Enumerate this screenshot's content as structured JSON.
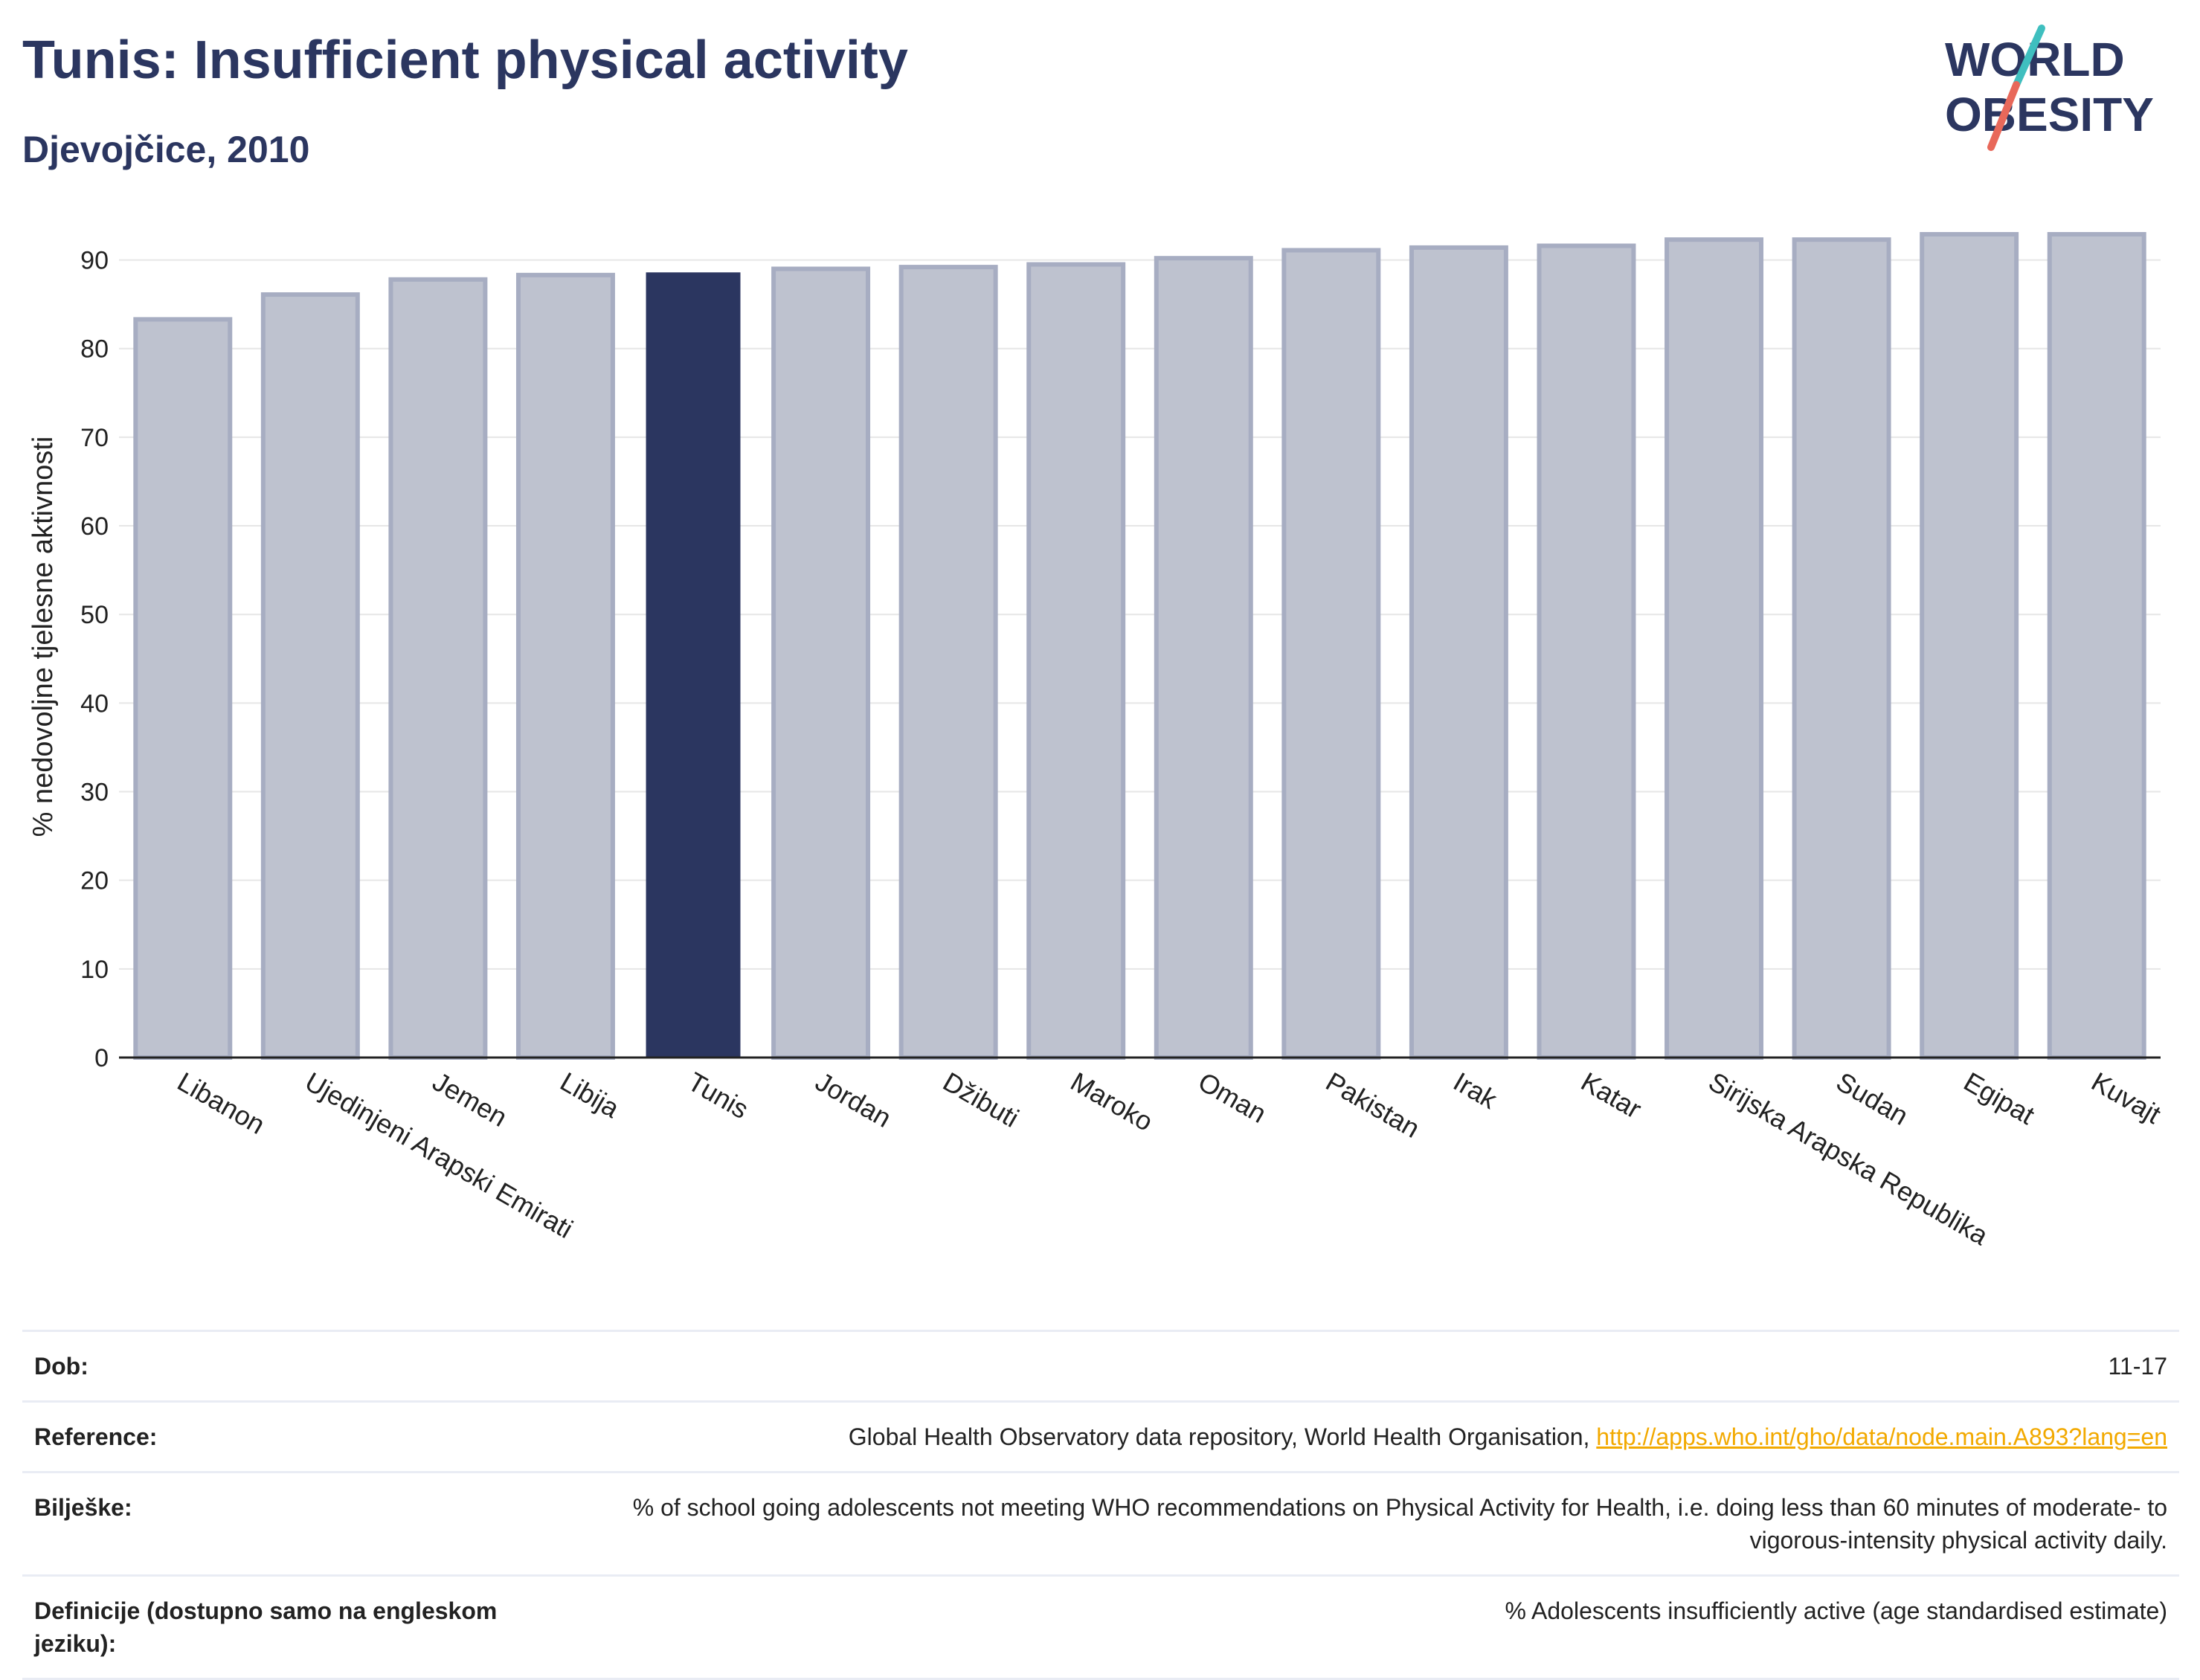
{
  "header": {
    "title": "Tunis: Insufficient physical activity",
    "subtitle": "Djevojčice, 2010"
  },
  "logo": {
    "line1": "WORLD",
    "line2": "OBESITY"
  },
  "chart_data": {
    "type": "bar",
    "title": "Tunis: Insufficient physical activity",
    "subtitle": "Djevojčice, 2010",
    "ylabel": "% nedovoljne tjelesne aktivnosti",
    "xlabel": "",
    "ylim": [
      0,
      95
    ],
    "yticks": [
      0,
      10,
      20,
      30,
      40,
      50,
      60,
      70,
      80,
      90
    ],
    "grid": true,
    "highlight": "Tunis",
    "categories": [
      "Libanon",
      "Ujedinjeni Arapski Emirati",
      "Jemen",
      "Libija",
      "Tunis",
      "Jordan",
      "Džibuti",
      "Maroko",
      "Oman",
      "Pakistan",
      "Irak",
      "Katar",
      "Sirijska Arapska Republika",
      "Sudan",
      "Egipat",
      "Kuvajt"
    ],
    "values": [
      83.3,
      86.1,
      87.8,
      88.3,
      88.6,
      89.0,
      89.2,
      89.5,
      90.2,
      91.1,
      91.4,
      91.6,
      92.3,
      92.3,
      92.9,
      92.9
    ],
    "colors": {
      "bar": "#bec2cf",
      "bar_edge": "#a7adc2",
      "highlight": "#2b3660",
      "grid": "#e6e6e6",
      "axis": "#222222"
    }
  },
  "meta": {
    "rows": [
      {
        "label": "Dob:",
        "value": "11-17"
      },
      {
        "label": "Reference:",
        "value": "Global Health Observatory data repository, World Health Organisation, ",
        "link": "http://apps.who.int/gho/data/node.main.A893?lang=en"
      },
      {
        "label": "Bilješke:",
        "value": "% of school going adolescents not meeting WHO recommendations on Physical Activity for Health, i.e. doing less than 60 minutes of moderate- to vigorous-intensity physical activity daily."
      },
      {
        "label": "Definicije (dostupno samo na engleskom jeziku):",
        "value": "% Adolescents insufficiently active (age standardised estimate)"
      }
    ]
  }
}
